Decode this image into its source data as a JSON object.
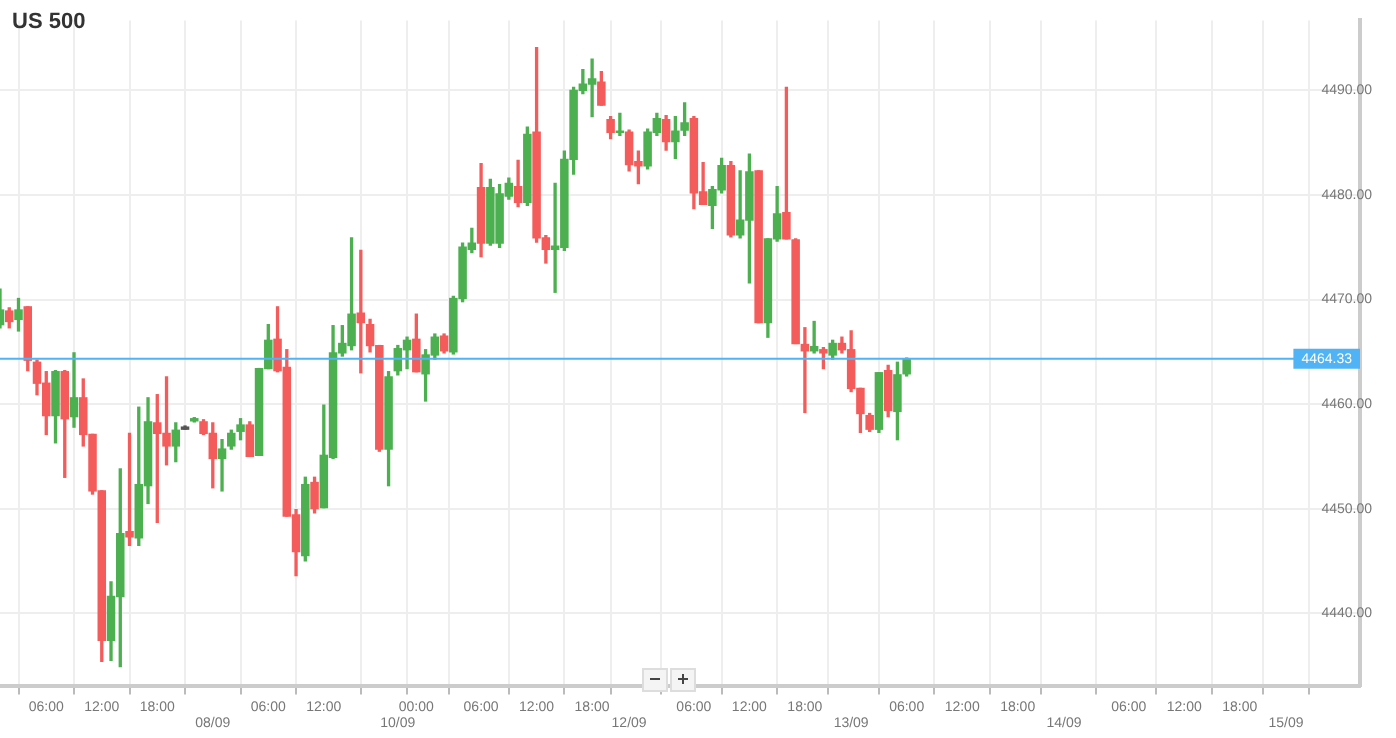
{
  "chart_data": {
    "type": "candlestick",
    "title": "US 500",
    "categories": [
      null,
      null,
      null,
      null,
      null,
      "06:00",
      null,
      null,
      null,
      null,
      null,
      "12:00",
      null,
      null,
      null,
      null,
      null,
      "18:00",
      null,
      null,
      null,
      null,
      null,
      "08/09",
      null,
      null,
      null,
      null,
      null,
      "06:00",
      null,
      null,
      null,
      null,
      null,
      "12:00",
      null,
      null,
      null,
      null,
      null,
      null,
      null,
      "10/09",
      null,
      "00:00",
      null,
      null,
      null,
      null,
      null,
      null,
      "06:00",
      null,
      null,
      null,
      null,
      null,
      "12:00",
      null,
      null,
      null,
      null,
      null,
      "18:00",
      null,
      null,
      null,
      "12/09",
      null,
      null,
      null,
      null,
      null,
      null,
      "06:00",
      null,
      null,
      null,
      null,
      null,
      "12:00",
      null,
      null,
      null,
      null,
      null,
      "18:00",
      null,
      null,
      null,
      null,
      "13/09",
      null,
      null,
      null,
      null,
      null,
      "06:00",
      null,
      null,
      null,
      null,
      null,
      "12:00",
      null,
      null,
      null,
      null,
      null,
      "18:00",
      null,
      null,
      null,
      null,
      "14/09",
      null,
      null,
      null,
      null,
      null,
      null,
      "06:00",
      null,
      null,
      null,
      null,
      null,
      "12:00",
      null,
      null,
      null,
      null,
      null,
      "18:00",
      null,
      null,
      null,
      null,
      "15/09",
      null,
      null,
      null,
      null,
      null,
      null,
      null,
      null
    ],
    "ohlc": [
      [
        4467.6,
        4471.0,
        4467.3,
        4469.0
      ],
      [
        4468.9,
        4469.2,
        4467.3,
        4467.9
      ],
      [
        4468.1,
        4470.1,
        4467.0,
        4469.0
      ],
      [
        4469.3,
        4469.3,
        4463.2,
        4464.2
      ],
      [
        4464.0,
        4464.2,
        4460.9,
        4462.0
      ],
      [
        4462.0,
        4463.1,
        4457.1,
        4458.9
      ],
      [
        4458.9,
        4463.2,
        4456.3,
        4463.1
      ],
      [
        4463.1,
        4463.2,
        4453.0,
        4458.6
      ],
      [
        4458.8,
        4464.9,
        4457.8,
        4460.6
      ],
      [
        4460.6,
        4462.4,
        4456.0,
        4457.1
      ],
      [
        4457.1,
        4457.1,
        4451.4,
        4451.7
      ],
      [
        4451.7,
        4451.7,
        4435.4,
        4437.4
      ],
      [
        4437.4,
        4443.0,
        4435.5,
        4441.6
      ],
      [
        4441.6,
        4453.8,
        4434.9,
        4447.6
      ],
      [
        4447.8,
        4457.2,
        4446.5,
        4447.3
      ],
      [
        4447.2,
        4459.7,
        4446.5,
        4452.3
      ],
      [
        4452.2,
        4460.6,
        4450.5,
        4458.3
      ],
      [
        4458.2,
        4460.9,
        4448.7,
        4457.2
      ],
      [
        4457.2,
        4462.6,
        4454.2,
        4456.0
      ],
      [
        4456.0,
        4458.2,
        4454.5,
        4457.5
      ],
      [
        4457.6,
        4457.9,
        4457.6,
        4457.8
      ],
      [
        4458.4,
        4458.7,
        4458.3,
        4458.6
      ],
      [
        4458.3,
        4458.5,
        4457.1,
        4457.2
      ],
      [
        4457.2,
        4458.2,
        4452.0,
        4454.8
      ],
      [
        4454.8,
        4456.6,
        4451.7,
        4455.7
      ],
      [
        4456.0,
        4457.5,
        4455.7,
        4457.2
      ],
      [
        4457.4,
        4458.6,
        4456.6,
        4458.0
      ],
      [
        4458.0,
        4458.3,
        4455.0,
        4455.0
      ],
      [
        4455.1,
        4463.4,
        4455.1,
        4463.4
      ],
      [
        4463.4,
        4467.6,
        4463.4,
        4466.1
      ],
      [
        4466.2,
        4469.3,
        4463.1,
        4463.2
      ],
      [
        4463.5,
        4465.2,
        4449.3,
        4449.3
      ],
      [
        4449.4,
        4449.9,
        4443.6,
        4445.9
      ],
      [
        4445.5,
        4453.0,
        4445.0,
        4452.3
      ],
      [
        4452.5,
        4453.0,
        4449.6,
        4450.0
      ],
      [
        4450.1,
        4459.9,
        4450.1,
        4455.1
      ],
      [
        4454.9,
        4467.5,
        4454.8,
        4464.9
      ],
      [
        4464.9,
        4467.5,
        4464.6,
        4465.8
      ],
      [
        4465.6,
        4475.9,
        4465.2,
        4468.6
      ],
      [
        4468.7,
        4474.7,
        4463.0,
        4467.8
      ],
      [
        4467.6,
        4468.1,
        4465.0,
        4465.6
      ],
      [
        4465.6,
        4465.6,
        4455.5,
        4455.7
      ],
      [
        4455.7,
        4463.1,
        4452.2,
        4462.6
      ],
      [
        4463.2,
        4465.6,
        4462.8,
        4465.3
      ],
      [
        4465.2,
        4466.4,
        4463.4,
        4466.1
      ],
      [
        4466.2,
        4468.6,
        4463.1,
        4463.1
      ],
      [
        4462.9,
        4465.2,
        4460.3,
        4464.7
      ],
      [
        4464.7,
        4466.7,
        4464.3,
        4466.4
      ],
      [
        4466.5,
        4466.7,
        4464.9,
        4465.1
      ],
      [
        4465.0,
        4470.3,
        4464.8,
        4470.1
      ],
      [
        4470.1,
        4475.4,
        4469.8,
        4475.0
      ],
      [
        4474.8,
        4476.8,
        4474.5,
        4475.4
      ],
      [
        4480.7,
        4483.0,
        4474.1,
        4475.4
      ],
      [
        4475.4,
        4481.5,
        4475.2,
        4480.7
      ],
      [
        4475.4,
        4481.0,
        4475.0,
        4480.1
      ],
      [
        4479.9,
        4481.6,
        4479.6,
        4481.1
      ],
      [
        4480.8,
        4483.3,
        4478.9,
        4479.3
      ],
      [
        4479.3,
        4486.5,
        4479.0,
        4485.8
      ],
      [
        4486.0,
        4494.1,
        4475.5,
        4475.9
      ],
      [
        4475.9,
        4476.1,
        4473.5,
        4474.8
      ],
      [
        4474.8,
        4481.1,
        4470.7,
        4475.1
      ],
      [
        4475.0,
        4484.2,
        4474.7,
        4483.4
      ],
      [
        4483.4,
        4490.3,
        4482.0,
        4490.0
      ],
      [
        4490.0,
        4492.0,
        4489.7,
        4490.6
      ],
      [
        4490.6,
        4493.0,
        4487.5,
        4491.1
      ],
      [
        4490.8,
        4491.8,
        4488.6,
        4488.6
      ],
      [
        4487.2,
        4487.5,
        4485.4,
        4486.0
      ],
      [
        4486.0,
        4487.8,
        4485.7,
        4486.1
      ],
      [
        4486.0,
        4486.2,
        4482.3,
        4482.9
      ],
      [
        4483.2,
        4484.2,
        4481.1,
        4482.8
      ],
      [
        4482.8,
        4486.3,
        4482.5,
        4486.0
      ],
      [
        4486.0,
        4487.8,
        4485.7,
        4487.3
      ],
      [
        4487.2,
        4487.6,
        4484.3,
        4485.1
      ],
      [
        4485.1,
        4487.5,
        4483.5,
        4486.1
      ],
      [
        4486.2,
        4488.8,
        4485.7,
        4486.9
      ],
      [
        4487.3,
        4487.5,
        4478.7,
        4480.2
      ],
      [
        4480.3,
        4483.1,
        4479.1,
        4479.1
      ],
      [
        4479.0,
        4480.8,
        4476.8,
        4480.5
      ],
      [
        4480.5,
        4483.5,
        4480.2,
        4482.8
      ],
      [
        4482.8,
        4483.2,
        4476.0,
        4476.2
      ],
      [
        4476.2,
        4482.3,
        4475.9,
        4477.6
      ],
      [
        4477.6,
        4483.9,
        4471.6,
        4482.2
      ],
      [
        4482.3,
        4482.3,
        4467.8,
        4467.8
      ],
      [
        4467.8,
        4475.8,
        4466.4,
        4475.8
      ],
      [
        4475.8,
        4480.8,
        4475.6,
        4478.2
      ],
      [
        4478.3,
        4490.3,
        4475.8,
        4475.8
      ],
      [
        4475.7,
        4475.8,
        4465.8,
        4465.8
      ],
      [
        4465.7,
        4467.3,
        4459.2,
        4465.1
      ],
      [
        4465.1,
        4467.9,
        4464.9,
        4465.5
      ],
      [
        4465.2,
        4465.4,
        4463.4,
        4464.9
      ],
      [
        4464.7,
        4466.1,
        4464.3,
        4465.8
      ],
      [
        4465.8,
        4466.4,
        4464.9,
        4465.2
      ],
      [
        4465.2,
        4467.0,
        4461.2,
        4461.5
      ],
      [
        4461.5,
        4461.5,
        4457.3,
        4459.1
      ],
      [
        4458.9,
        4459.1,
        4457.4,
        4457.6
      ],
      [
        4457.6,
        4463.0,
        4457.3,
        4463.0
      ],
      [
        4463.2,
        4463.7,
        4458.8,
        4459.4
      ],
      [
        4459.3,
        4464.0,
        4456.6,
        4462.8
      ],
      [
        4462.9,
        4464.4,
        4462.7,
        4464.3
      ],
      null,
      null,
      null,
      null,
      null,
      null,
      null,
      null,
      null,
      null,
      null,
      null,
      null,
      null,
      null,
      null,
      null,
      null,
      null,
      null,
      null,
      null,
      null,
      null,
      null,
      null,
      null,
      null,
      null,
      null,
      null,
      null,
      null,
      null,
      null,
      null,
      null,
      null,
      null,
      null,
      null,
      null,
      null,
      null,
      null,
      null,
      null,
      null,
      null
    ],
    "colors": [
      "#4caf50",
      "#f45b5b",
      "#4caf50",
      "#f45b5b",
      "#f45b5b",
      "#f45b5b",
      "#4caf50",
      "#f45b5b",
      "#4caf50",
      "#f45b5b",
      "#f45b5b",
      "#f45b5b",
      "#4caf50",
      "#4caf50",
      "#f45b5b",
      "#4caf50",
      "#4caf50",
      "#f45b5b",
      "#f45b5b",
      "#4caf50",
      "#555555",
      "#4caf50",
      "#f45b5b",
      "#f45b5b",
      "#4caf50",
      "#4caf50",
      "#4caf50",
      "#f45b5b",
      "#4caf50",
      "#4caf50",
      "#f45b5b",
      "#f45b5b",
      "#f45b5b",
      "#4caf50",
      "#f45b5b",
      "#4caf50",
      "#4caf50",
      "#4caf50",
      "#4caf50",
      "#f45b5b",
      "#f45b5b",
      "#f45b5b",
      "#4caf50",
      "#4caf50",
      "#4caf50",
      "#f45b5b",
      "#4caf50",
      "#4caf50",
      "#f45b5b",
      "#4caf50",
      "#4caf50",
      "#4caf50",
      "#f45b5b",
      "#4caf50",
      "#4caf50",
      "#4caf50",
      "#f45b5b",
      "#4caf50",
      "#f45b5b",
      "#f45b5b",
      "#4caf50",
      "#4caf50",
      "#4caf50",
      "#4caf50",
      "#4caf50",
      "#f45b5b",
      "#f45b5b",
      "#4caf50",
      "#f45b5b",
      "#f45b5b",
      "#4caf50",
      "#4caf50",
      "#f45b5b",
      "#4caf50",
      "#4caf50",
      "#f45b5b",
      "#f45b5b",
      "#4caf50",
      "#4caf50",
      "#f45b5b",
      "#4caf50",
      "#4caf50",
      "#f45b5b",
      "#4caf50",
      "#4caf50",
      "#f45b5b",
      "#f45b5b",
      "#f45b5b",
      "#4caf50",
      "#f45b5b",
      "#4caf50",
      "#f45b5b",
      "#f45b5b",
      "#f45b5b",
      "#f45b5b",
      "#4caf50",
      "#f45b5b",
      "#4caf50",
      "#4caf50",
      null,
      null,
      null,
      null,
      null,
      null,
      null,
      null,
      null,
      null,
      null,
      null,
      null,
      null,
      null,
      null,
      null,
      null,
      null,
      null,
      null,
      null,
      null,
      null,
      null,
      null,
      null,
      null,
      null,
      null,
      null,
      null,
      null,
      null,
      null,
      null,
      null,
      null,
      null,
      null,
      null,
      null,
      null,
      null,
      null,
      null,
      null,
      null,
      null
    ],
    "ylim": [
      4433.0,
      4496.7
    ],
    "yticks": [
      {
        "value": 4440,
        "label": "4440.00"
      },
      {
        "value": 4450,
        "label": "4450.00"
      },
      {
        "value": 4460,
        "label": "4460.00"
      },
      {
        "value": 4470,
        "label": "4470.00"
      },
      {
        "value": 4480,
        "label": "4480.00"
      },
      {
        "value": 4490,
        "label": "4490.00"
      }
    ],
    "ref_lines": [
      {
        "axis": "y",
        "value": 4464.33,
        "label": "4464.33",
        "color": "#4fb3f6"
      }
    ],
    "grid": true,
    "legend": false
  }
}
